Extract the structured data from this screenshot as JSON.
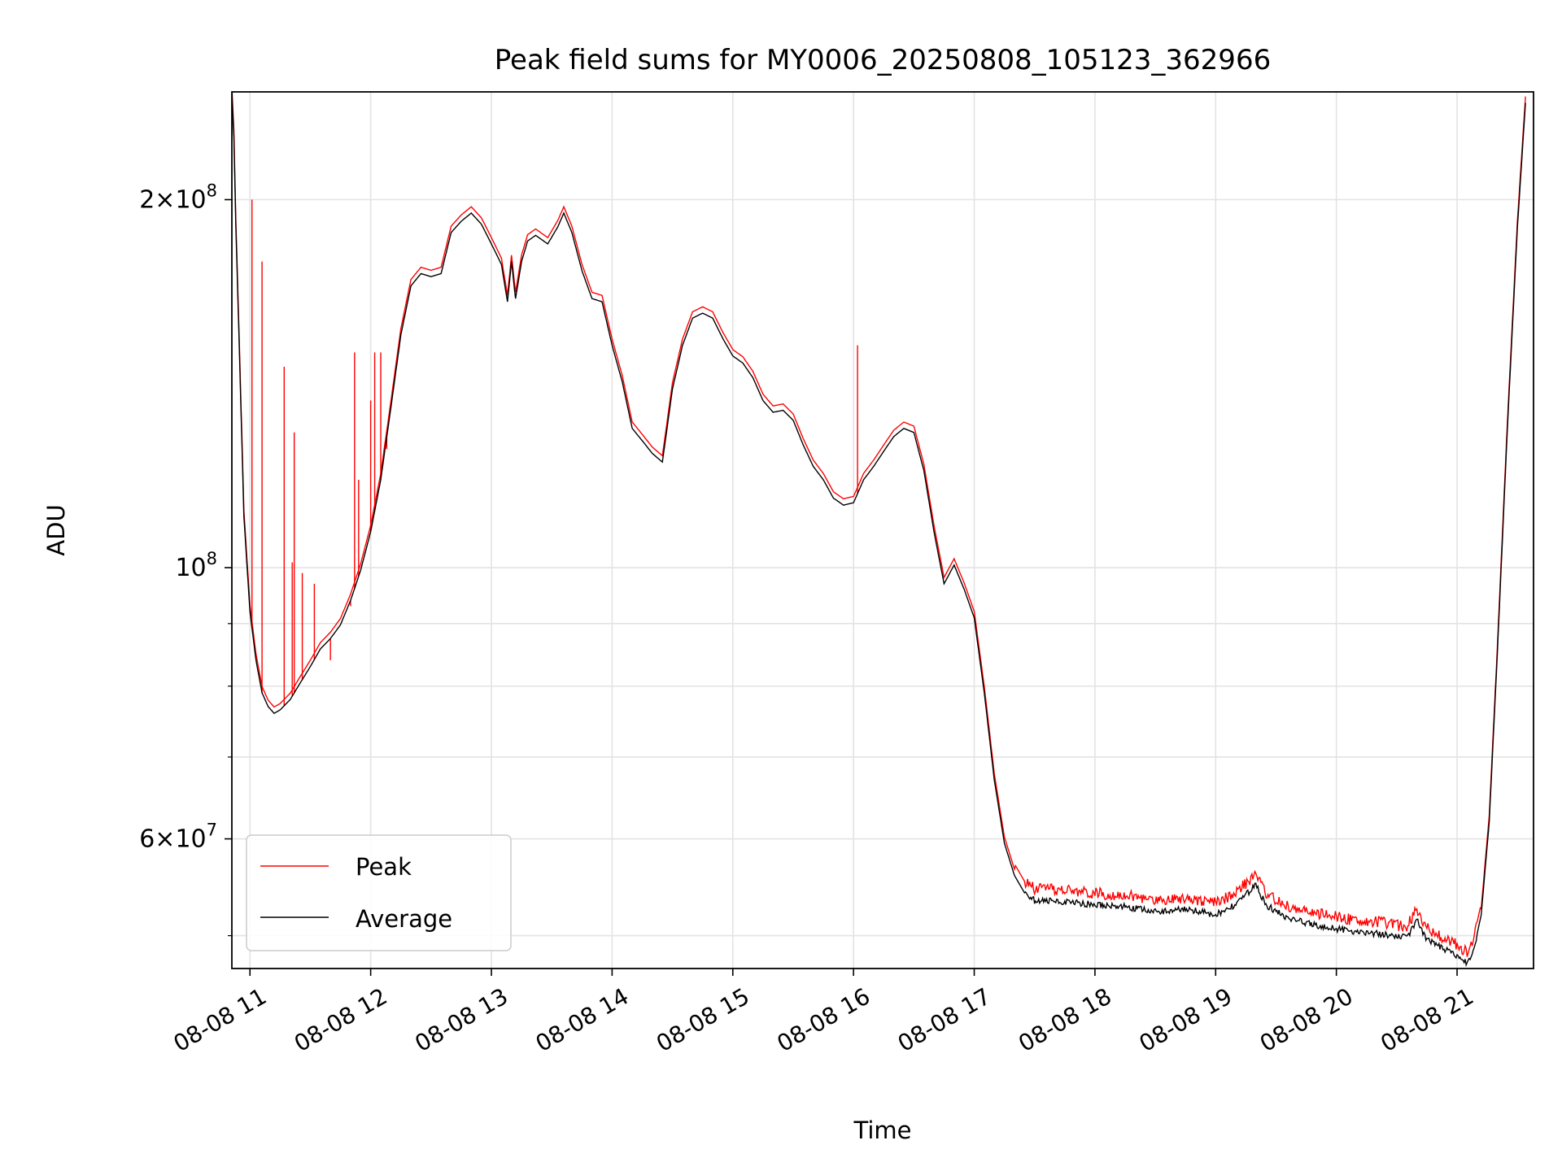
{
  "chart_data": {
    "type": "line",
    "title": "Peak field sums for MY0006_20250808_105123_362966",
    "xlabel": "Time",
    "ylabel": "ADU",
    "yscale": "log",
    "ylim": [
      47000000,
      245000000
    ],
    "xlim": [
      "2025-08-08 10:51",
      "2025-08-08 21:38"
    ],
    "grid": true,
    "legend_position": "lower-left",
    "x_ticks": [
      {
        "t": "2025-08-08 11:00",
        "label": "08-08 11"
      },
      {
        "t": "2025-08-08 12:00",
        "label": "08-08 12"
      },
      {
        "t": "2025-08-08 13:00",
        "label": "08-08 13"
      },
      {
        "t": "2025-08-08 14:00",
        "label": "08-08 14"
      },
      {
        "t": "2025-08-08 15:00",
        "label": "08-08 15"
      },
      {
        "t": "2025-08-08 16:00",
        "label": "08-08 16"
      },
      {
        "t": "2025-08-08 17:00",
        "label": "08-08 17"
      },
      {
        "t": "2025-08-08 18:00",
        "label": "08-08 18"
      },
      {
        "t": "2025-08-08 19:00",
        "label": "08-08 19"
      },
      {
        "t": "2025-08-08 20:00",
        "label": "08-08 20"
      },
      {
        "t": "2025-08-08 21:00",
        "label": "08-08 21"
      }
    ],
    "y_major_ticks": [
      {
        "value": 60000000,
        "mantissa": "6",
        "base": "10",
        "exp": "7"
      },
      {
        "value": 100000000,
        "mantissa": "",
        "base": "10",
        "exp": "8"
      },
      {
        "value": 200000000,
        "mantissa": "2",
        "base": "10",
        "exp": "8"
      }
    ],
    "y_minor_ticks": [
      50000000,
      70000000,
      80000000,
      90000000
    ],
    "series": [
      {
        "name": "Average",
        "color": "#000000",
        "points": [
          [
            "2025-08-08 10:51",
            245000000
          ],
          [
            "2025-08-08 10:52",
            225000000
          ],
          [
            "2025-08-08 10:53",
            190000000
          ],
          [
            "2025-08-08 10:55",
            145000000
          ],
          [
            "2025-08-08 10:57",
            110000000
          ],
          [
            "2025-08-08 11:00",
            92000000
          ],
          [
            "2025-08-08 11:03",
            84000000
          ],
          [
            "2025-08-08 11:06",
            79000000
          ],
          [
            "2025-08-08 11:09",
            77000000
          ],
          [
            "2025-08-08 11:12",
            76000000
          ],
          [
            "2025-08-08 11:15",
            76500000
          ],
          [
            "2025-08-08 11:20",
            78000000
          ],
          [
            "2025-08-08 11:25",
            80500000
          ],
          [
            "2025-08-08 11:30",
            83000000
          ],
          [
            "2025-08-08 11:35",
            85800000
          ],
          [
            "2025-08-08 11:40",
            87500000
          ],
          [
            "2025-08-08 11:45",
            89800000
          ],
          [
            "2025-08-08 11:50",
            94000000
          ],
          [
            "2025-08-08 11:55",
            99500000
          ],
          [
            "2025-08-08 12:00",
            107000000
          ],
          [
            "2025-08-08 12:05",
            118000000
          ],
          [
            "2025-08-08 12:10",
            135000000
          ],
          [
            "2025-08-08 12:15",
            155000000
          ],
          [
            "2025-08-08 12:20",
            170000000
          ],
          [
            "2025-08-08 12:25",
            174000000
          ],
          [
            "2025-08-08 12:30",
            173000000
          ],
          [
            "2025-08-08 12:35",
            174000000
          ],
          [
            "2025-08-08 12:40",
            188000000
          ],
          [
            "2025-08-08 12:45",
            192000000
          ],
          [
            "2025-08-08 12:50",
            195000000
          ],
          [
            "2025-08-08 12:55",
            191000000
          ],
          [
            "2025-08-08 13:00",
            184000000
          ],
          [
            "2025-08-08 13:05",
            177000000
          ],
          [
            "2025-08-08 13:08",
            165000000
          ],
          [
            "2025-08-08 13:10",
            178000000
          ],
          [
            "2025-08-08 13:12",
            166000000
          ],
          [
            "2025-08-08 13:15",
            178000000
          ],
          [
            "2025-08-08 13:18",
            185000000
          ],
          [
            "2025-08-08 13:22",
            187000000
          ],
          [
            "2025-08-08 13:28",
            184000000
          ],
          [
            "2025-08-08 13:33",
            190000000
          ],
          [
            "2025-08-08 13:36",
            195000000
          ],
          [
            "2025-08-08 13:40",
            188000000
          ],
          [
            "2025-08-08 13:45",
            175000000
          ],
          [
            "2025-08-08 13:50",
            166000000
          ],
          [
            "2025-08-08 13:55",
            165000000
          ],
          [
            "2025-08-08 14:00",
            152000000
          ],
          [
            "2025-08-08 14:05",
            142000000
          ],
          [
            "2025-08-08 14:10",
            130000000
          ],
          [
            "2025-08-08 14:15",
            127000000
          ],
          [
            "2025-08-08 14:20",
            124000000
          ],
          [
            "2025-08-08 14:25",
            122000000
          ],
          [
            "2025-08-08 14:30",
            140000000
          ],
          [
            "2025-08-08 14:35",
            152000000
          ],
          [
            "2025-08-08 14:40",
            160000000
          ],
          [
            "2025-08-08 14:45",
            161500000
          ],
          [
            "2025-08-08 14:50",
            160000000
          ],
          [
            "2025-08-08 14:55",
            154000000
          ],
          [
            "2025-08-08 15:00",
            149000000
          ],
          [
            "2025-08-08 15:05",
            147000000
          ],
          [
            "2025-08-08 15:10",
            143000000
          ],
          [
            "2025-08-08 15:15",
            137000000
          ],
          [
            "2025-08-08 15:20",
            134000000
          ],
          [
            "2025-08-08 15:25",
            134500000
          ],
          [
            "2025-08-08 15:30",
            132000000
          ],
          [
            "2025-08-08 15:35",
            126000000
          ],
          [
            "2025-08-08 15:40",
            121000000
          ],
          [
            "2025-08-08 15:45",
            118000000
          ],
          [
            "2025-08-08 15:50",
            114000000
          ],
          [
            "2025-08-08 15:55",
            112500000
          ],
          [
            "2025-08-08 16:00",
            113000000
          ],
          [
            "2025-08-08 16:05",
            118000000
          ],
          [
            "2025-08-08 16:10",
            121000000
          ],
          [
            "2025-08-08 16:15",
            124500000
          ],
          [
            "2025-08-08 16:20",
            128000000
          ],
          [
            "2025-08-08 16:25",
            130000000
          ],
          [
            "2025-08-08 16:30",
            129000000
          ],
          [
            "2025-08-08 16:35",
            120000000
          ],
          [
            "2025-08-08 16:40",
            107000000
          ],
          [
            "2025-08-08 16:45",
            97000000
          ],
          [
            "2025-08-08 16:50",
            100500000
          ],
          [
            "2025-08-08 16:55",
            96000000
          ],
          [
            "2025-08-08 17:00",
            91000000
          ],
          [
            "2025-08-08 17:05",
            79000000
          ],
          [
            "2025-08-08 17:10",
            67000000
          ],
          [
            "2025-08-08 17:15",
            59500000
          ],
          [
            "2025-08-08 17:20",
            56000000
          ],
          [
            "2025-08-08 17:25",
            54200000
          ],
          [
            "2025-08-08 17:30",
            53400000
          ],
          [
            "2025-08-08 17:45",
            53300000
          ],
          [
            "2025-08-08 18:00",
            53000000
          ],
          [
            "2025-08-08 18:15",
            52800000
          ],
          [
            "2025-08-08 18:30",
            52300000
          ],
          [
            "2025-08-08 18:45",
            52600000
          ],
          [
            "2025-08-08 19:00",
            52000000
          ],
          [
            "2025-08-08 19:10",
            53000000
          ],
          [
            "2025-08-08 19:20",
            55000000
          ],
          [
            "2025-08-08 19:25",
            53000000
          ],
          [
            "2025-08-08 19:35",
            51700000
          ],
          [
            "2025-08-08 19:50",
            51000000
          ],
          [
            "2025-08-08 20:05",
            50500000
          ],
          [
            "2025-08-08 20:20",
            50200000
          ],
          [
            "2025-08-08 20:35",
            49800000
          ],
          [
            "2025-08-08 20:40",
            51500000
          ],
          [
            "2025-08-08 20:45",
            49600000
          ],
          [
            "2025-08-08 20:55",
            48600000
          ],
          [
            "2025-08-08 21:05",
            47500000
          ],
          [
            "2025-08-08 21:08",
            48500000
          ],
          [
            "2025-08-08 21:12",
            52000000
          ],
          [
            "2025-08-08 21:16",
            62000000
          ],
          [
            "2025-08-08 21:20",
            85000000
          ],
          [
            "2025-08-08 21:25",
            130000000
          ],
          [
            "2025-08-08 21:30",
            190000000
          ],
          [
            "2025-08-08 21:34",
            240000000
          ]
        ]
      },
      {
        "name": "Peak",
        "color": "#ff0000",
        "offset_ratio": 1.012,
        "tail_offset_ratio": 1.022,
        "spikes": [
          [
            "2025-08-08 11:01",
            200000000
          ],
          [
            "2025-08-08 11:06",
            178000000
          ],
          [
            "2025-08-08 11:17",
            146000000
          ],
          [
            "2025-08-08 11:22",
            129000000
          ],
          [
            "2025-08-08 11:21",
            101000000
          ],
          [
            "2025-08-08 11:26",
            99000000
          ],
          [
            "2025-08-08 11:32",
            97000000
          ],
          [
            "2025-08-08 11:40",
            84000000
          ],
          [
            "2025-08-08 11:50",
            93000000
          ],
          [
            "2025-08-08 11:52",
            150000000
          ],
          [
            "2025-08-08 11:54",
            118000000
          ],
          [
            "2025-08-08 12:00",
            137000000
          ],
          [
            "2025-08-08 12:02",
            150000000
          ],
          [
            "2025-08-08 12:05",
            150000000
          ],
          [
            "2025-08-08 12:08",
            125000000
          ],
          [
            "2025-08-08 16:02",
            152000000
          ]
        ]
      }
    ]
  }
}
